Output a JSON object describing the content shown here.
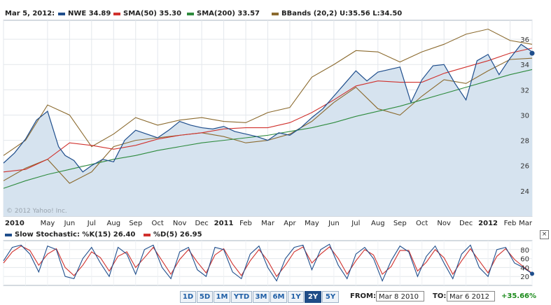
{
  "legend": {
    "date": "Mar 5, 2012:",
    "items": [
      {
        "label": "NWE 34.89",
        "color": "#1f4e8c"
      },
      {
        "label": "SMA(50) 35.30",
        "color": "#d0312d"
      },
      {
        "label": "SMA(200) 33.57",
        "color": "#2e8b3e"
      },
      {
        "label": "BBands (20,2) U:35.56 L:34.50",
        "color": "#8b6a2e"
      }
    ]
  },
  "watermark": "© 2012 Yahoo! Inc.",
  "stochastic": {
    "k_label": "Slow Stochastic: %K(15) 26.40",
    "k_color": "#1f4e8c",
    "d_label": "%D(5) 26.95",
    "d_color": "#d0312d",
    "close_label": "×",
    "yticks": [
      "80",
      "60",
      "40",
      "20"
    ]
  },
  "controls": {
    "ranges": [
      "1D",
      "5D",
      "1M",
      "YTD",
      "3M",
      "6M",
      "1Y",
      "2Y",
      "5Y"
    ],
    "active_range": "2Y",
    "from_label": "FROM:",
    "from_value": "Mar 8 2010",
    "to_label": "TO:",
    "to_value": "Mar 6 2012",
    "change": "+35.66%"
  },
  "chart_data": {
    "type": "line",
    "title": "",
    "xlabel": "",
    "ylabel": "",
    "x_tick_labels": [
      "2010",
      "May",
      "Jun",
      "Jul",
      "Aug",
      "Sep",
      "Oct",
      "Nov",
      "Dec",
      "2011",
      "Feb",
      "Mar",
      "Apr",
      "May",
      "Jun",
      "Jul",
      "Aug",
      "Sep",
      "Oct",
      "Nov",
      "Dec",
      "2012",
      "Feb",
      "Mar"
    ],
    "y_ticks": [
      24,
      26,
      28,
      30,
      32,
      34,
      36
    ],
    "ylim": [
      22,
      37.5
    ],
    "grid": true,
    "month_index": [
      0,
      2,
      3,
      4,
      5,
      6,
      7,
      8,
      9,
      10,
      11,
      12,
      13,
      14,
      15,
      16,
      17,
      18,
      19,
      20,
      21,
      22,
      23,
      24
    ],
    "xlim": [
      0,
      24
    ],
    "series": [
      {
        "name": "NWE",
        "color": "#1f4e8c",
        "fill": true,
        "x": [
          0,
          0.5,
          1,
          1.5,
          2,
          2.5,
          2.8,
          3.2,
          3.6,
          4,
          4.5,
          5,
          5.5,
          6,
          6.5,
          7,
          7.5,
          8,
          8.5,
          9,
          9.5,
          10,
          10.5,
          11,
          11.5,
          12,
          12.5,
          13,
          13.5,
          14,
          14.5,
          15,
          15.5,
          16,
          16.5,
          17,
          17.5,
          18,
          18.5,
          19,
          19.5,
          20,
          20.5,
          21,
          21.5,
          22,
          22.5,
          23,
          23.5,
          24
        ],
        "values": [
          26.2,
          27.0,
          28.1,
          29.6,
          30.3,
          27.5,
          26.8,
          26.4,
          25.5,
          26.0,
          26.5,
          26.3,
          28.0,
          28.8,
          28.5,
          28.2,
          28.8,
          29.5,
          29.2,
          29.0,
          28.9,
          29.1,
          28.7,
          28.5,
          28.3,
          28.0,
          28.6,
          28.4,
          29.0,
          29.8,
          30.5,
          31.5,
          32.5,
          33.5,
          32.7,
          33.4,
          33.6,
          33.8,
          31.0,
          32.8,
          33.9,
          34.0,
          32.5,
          31.2,
          34.3,
          34.8,
          33.2,
          34.5,
          35.6,
          35.0
        ]
      },
      {
        "name": "SMA(50)",
        "color": "#d0312d",
        "x": [
          0,
          1,
          2,
          3,
          4,
          5,
          6,
          7,
          8,
          9,
          10,
          11,
          12,
          13,
          14,
          15,
          16,
          17,
          18,
          19,
          20,
          21,
          22,
          23,
          24
        ],
        "values": [
          25.5,
          25.7,
          26.5,
          27.8,
          27.6,
          27.3,
          27.6,
          28.1,
          28.4,
          28.6,
          28.9,
          29.0,
          29.0,
          29.4,
          30.2,
          31.2,
          32.3,
          32.7,
          32.6,
          32.6,
          33.3,
          33.8,
          34.3,
          34.9,
          35.3
        ]
      },
      {
        "name": "SMA(200)",
        "color": "#2e8b3e",
        "x": [
          0,
          1,
          2,
          3,
          4,
          5,
          6,
          7,
          8,
          9,
          10,
          11,
          12,
          13,
          14,
          15,
          16,
          17,
          18,
          19,
          20,
          21,
          22,
          23,
          24
        ],
        "values": [
          24.2,
          24.8,
          25.3,
          25.7,
          26.1,
          26.5,
          26.8,
          27.2,
          27.5,
          27.8,
          28.0,
          28.2,
          28.4,
          28.7,
          29.0,
          29.4,
          29.9,
          30.3,
          30.7,
          31.2,
          31.7,
          32.2,
          32.7,
          33.2,
          33.6
        ]
      },
      {
        "name": "BBands Upper",
        "color": "#8b6a2e",
        "x": [
          0,
          1,
          2,
          3,
          4,
          5,
          6,
          7,
          8,
          9,
          10,
          11,
          12,
          13,
          14,
          15,
          16,
          17,
          18,
          19,
          20,
          21,
          22,
          23,
          24
        ],
        "values": [
          26.8,
          28.0,
          30.8,
          30.0,
          27.5,
          28.5,
          29.8,
          29.2,
          29.6,
          29.8,
          29.5,
          29.4,
          30.2,
          30.6,
          33.0,
          34.0,
          35.1,
          35.0,
          34.2,
          35.0,
          35.6,
          36.4,
          36.8,
          35.9,
          35.6
        ]
      },
      {
        "name": "BBands Lower",
        "color": "#8b6a2e",
        "x": [
          0,
          1,
          2,
          3,
          4,
          5,
          6,
          7,
          8,
          9,
          10,
          11,
          12,
          13,
          14,
          15,
          16,
          17,
          18,
          19,
          20,
          21,
          22,
          23,
          24
        ],
        "values": [
          24.8,
          25.8,
          26.5,
          24.6,
          25.5,
          27.5,
          28.0,
          28.2,
          28.4,
          28.6,
          28.3,
          27.8,
          28.0,
          28.5,
          29.5,
          31.0,
          32.2,
          30.5,
          30.0,
          31.5,
          32.8,
          32.5,
          33.5,
          34.4,
          34.5
        ]
      }
    ],
    "last_marker": {
      "x": 24,
      "value": 34.89
    }
  },
  "stochastic_data": {
    "type": "line",
    "ylim": [
      0,
      100
    ],
    "y_ticks": [
      20,
      40,
      60,
      80
    ],
    "series": [
      {
        "name": "%K(15)",
        "color": "#1f4e8c",
        "x": [
          0,
          0.4,
          0.8,
          1.2,
          1.6,
          2.0,
          2.4,
          2.8,
          3.2,
          3.6,
          4.0,
          4.4,
          4.8,
          5.2,
          5.6,
          6.0,
          6.4,
          6.8,
          7.2,
          7.6,
          8.0,
          8.4,
          8.8,
          9.2,
          9.6,
          10.0,
          10.4,
          10.8,
          11.2,
          11.6,
          12.0,
          12.4,
          12.8,
          13.2,
          13.6,
          14.0,
          14.4,
          14.8,
          15.2,
          15.6,
          16.0,
          16.4,
          16.8,
          17.2,
          17.6,
          18.0,
          18.4,
          18.8,
          19.2,
          19.6,
          20.0,
          20.4,
          20.8,
          21.2,
          21.6,
          22.0,
          22.4,
          22.8,
          23.2,
          23.6,
          24.0
        ],
        "values": [
          55,
          85,
          90,
          70,
          30,
          88,
          80,
          20,
          15,
          60,
          85,
          50,
          20,
          85,
          70,
          25,
          80,
          90,
          40,
          15,
          75,
          85,
          35,
          20,
          85,
          80,
          30,
          15,
          70,
          88,
          40,
          10,
          60,
          85,
          90,
          35,
          80,
          92,
          45,
          15,
          70,
          85,
          60,
          10,
          55,
          88,
          75,
          20,
          65,
          88,
          50,
          15,
          70,
          90,
          40,
          20,
          80,
          85,
          50,
          40,
          26
        ]
      },
      {
        "name": "%D(5)",
        "color": "#d0312d",
        "x": [
          0,
          0.4,
          0.8,
          1.2,
          1.6,
          2.0,
          2.4,
          2.8,
          3.2,
          3.6,
          4.0,
          4.4,
          4.8,
          5.2,
          5.6,
          6.0,
          6.4,
          6.8,
          7.2,
          7.6,
          8.0,
          8.4,
          8.8,
          9.2,
          9.6,
          10.0,
          10.4,
          10.8,
          11.2,
          11.6,
          12.0,
          12.4,
          12.8,
          13.2,
          13.6,
          14.0,
          14.4,
          14.8,
          15.2,
          15.6,
          16.0,
          16.4,
          16.8,
          17.2,
          17.6,
          18.0,
          18.4,
          18.8,
          19.2,
          19.6,
          20.0,
          20.4,
          20.8,
          21.2,
          21.6,
          22.0,
          22.4,
          22.8,
          23.2,
          23.6,
          24.0
        ],
        "values": [
          50,
          75,
          88,
          78,
          45,
          70,
          82,
          40,
          22,
          45,
          75,
          62,
          32,
          65,
          75,
          40,
          62,
          85,
          55,
          25,
          58,
          80,
          52,
          28,
          68,
          82,
          48,
          22,
          55,
          80,
          55,
          20,
          45,
          75,
          86,
          50,
          70,
          86,
          60,
          25,
          55,
          80,
          68,
          25,
          42,
          78,
          78,
          32,
          52,
          80,
          62,
          25,
          55,
          82,
          55,
          28,
          65,
          82,
          58,
          42,
          27
        ]
      }
    ]
  }
}
